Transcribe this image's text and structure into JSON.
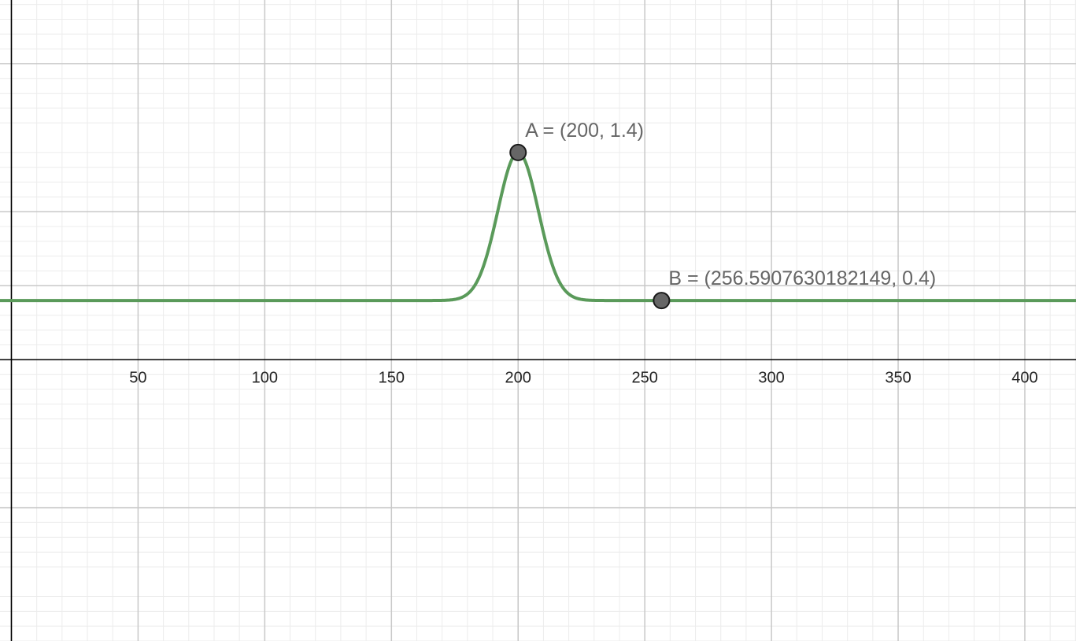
{
  "chart_data": {
    "type": "line",
    "title": "",
    "xlabel": "",
    "ylabel": "",
    "xlim": [
      -4.5,
      420.2
    ],
    "ylim": [
      -1.9,
      2.43
    ],
    "grid": true,
    "x_ticks": [
      "50",
      "100",
      "150",
      "200",
      "250",
      "300",
      "350",
      "400"
    ],
    "x_tick_values": [
      50,
      100,
      150,
      200,
      250,
      300,
      350,
      400
    ],
    "y_tick_values": [
      -1,
      0,
      0.5,
      1,
      2
    ],
    "series": [
      {
        "function": "gaussian",
        "peak_x": 200,
        "peak_y": 1.4,
        "baseline": 0.4,
        "sigma": 8,
        "color": "#5a9a5a"
      }
    ],
    "points": [
      {
        "name": "A",
        "x": 200,
        "y": 1.4,
        "label": "A = (200, 1.4)"
      },
      {
        "name": "B",
        "x": 256.5907630182149,
        "y": 0.4,
        "label": "B = (256.5907630182149, 0.4)"
      }
    ]
  },
  "colors": {
    "curve": "#5a9a5a",
    "point_fill": "#666666",
    "point_stroke": "#1a1a1a",
    "axis": "#000000",
    "major_grid": "#c8c8c8",
    "minor_grid": "#ececec",
    "label": "#666666"
  }
}
